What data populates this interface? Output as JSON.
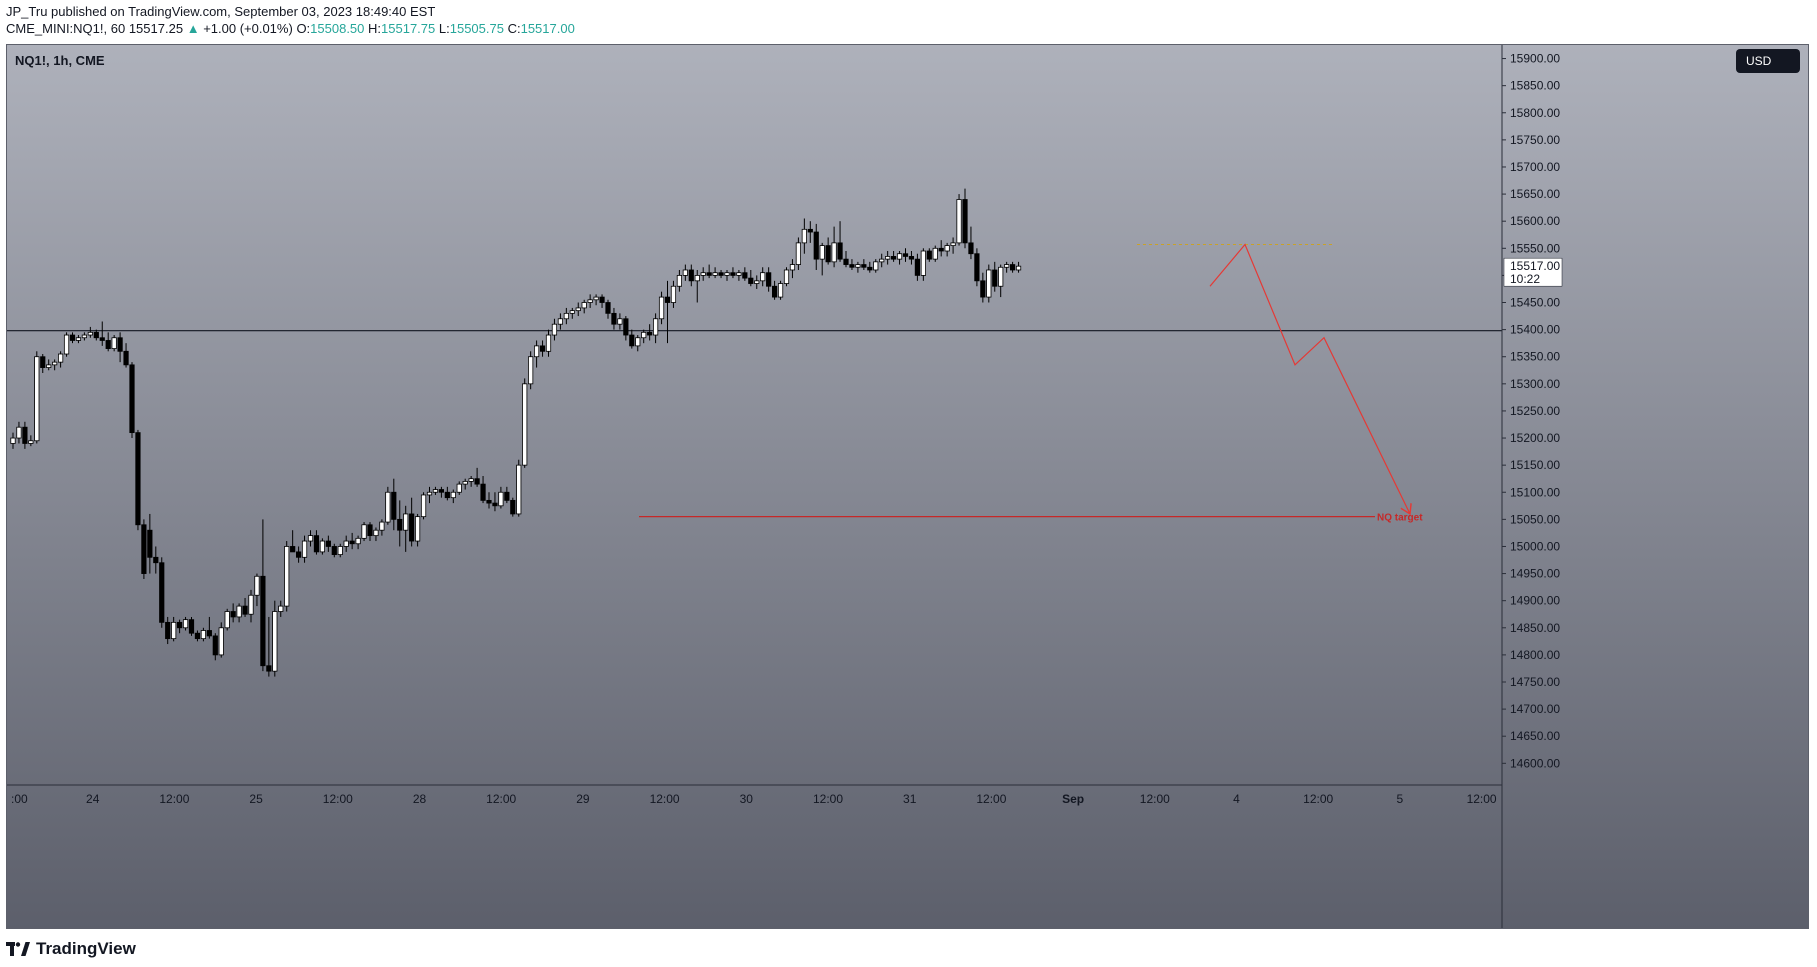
{
  "header": {
    "publisher_line": "JP_Tru published on TradingView.com, September 03, 2023 18:49:40 EST",
    "symbol": "CME_MINI:NQ1!, 60",
    "last": "15517.25",
    "change": "+1.00 (+0.01%)",
    "o_label": "O:",
    "o": "15508.50",
    "h_label": "H:",
    "h": "15517.75",
    "l_label": "L:",
    "l": "15505.75",
    "c_label": "C:",
    "c": "15517.00"
  },
  "chart_label": "NQ1!, 1h, CME",
  "currency_button": "USD",
  "price_tag": {
    "price": "15517.00",
    "countdown": "10:22"
  },
  "footer": {
    "brand": "TradingView"
  },
  "colors": {
    "bg_top": "#aeb1bb",
    "bg_bottom": "#5c5f6b",
    "candle_up": "#ffffff",
    "candle_down": "#000000",
    "projection": "#e53935",
    "target_line": "#c62828",
    "dotted_level": "#c9a227"
  },
  "chart_data": {
    "type": "candlestick",
    "title": "NQ1!, 1h, CME",
    "ylim": [
      14560,
      15925
    ],
    "y_ticks": [
      "15900.00",
      "15850.00",
      "15800.00",
      "15750.00",
      "15700.00",
      "15650.00",
      "15600.00",
      "15550.00",
      "15500.00",
      "15450.00",
      "15400.00",
      "15350.00",
      "15300.00",
      "15250.00",
      "15200.00",
      "15150.00",
      "15100.00",
      "15050.00",
      "15000.00",
      "14950.00",
      "14900.00",
      "14850.00",
      "14800.00",
      "14750.00",
      "14700.00",
      "14650.00",
      "14600.00"
    ],
    "x_ticks": [
      ":00",
      "24",
      "12:00",
      "25",
      "12:00",
      "28",
      "12:00",
      "29",
      "12:00",
      "30",
      "12:00",
      "31",
      "12:00",
      "Sep",
      "12:00",
      "4",
      "12:00",
      "5",
      "12:00"
    ],
    "candles": [
      [
        15190,
        15210,
        15180,
        15200
      ],
      [
        15200,
        15230,
        15190,
        15220
      ],
      [
        15220,
        15230,
        15180,
        15190
      ],
      [
        15190,
        15205,
        15185,
        15195
      ],
      [
        15195,
        15360,
        15190,
        15350
      ],
      [
        15350,
        15355,
        15320,
        15330
      ],
      [
        15330,
        15345,
        15325,
        15335
      ],
      [
        15335,
        15345,
        15325,
        15340
      ],
      [
        15340,
        15360,
        15330,
        15355
      ],
      [
        15355,
        15395,
        15350,
        15390
      ],
      [
        15390,
        15395,
        15375,
        15380
      ],
      [
        15380,
        15390,
        15375,
        15385
      ],
      [
        15385,
        15395,
        15380,
        15390
      ],
      [
        15390,
        15405,
        15385,
        15395
      ],
      [
        15395,
        15400,
        15380,
        15385
      ],
      [
        15385,
        15415,
        15370,
        15380
      ],
      [
        15380,
        15395,
        15360,
        15365
      ],
      [
        15365,
        15390,
        15360,
        15385
      ],
      [
        15385,
        15395,
        15340,
        15360
      ],
      [
        15360,
        15375,
        15330,
        15335
      ],
      [
        15335,
        15340,
        15200,
        15210
      ],
      [
        15210,
        15215,
        15030,
        15040
      ],
      [
        15040,
        15050,
        14940,
        14950
      ],
      [
        15030,
        15060,
        14950,
        14980
      ],
      [
        14980,
        15000,
        14950,
        14970
      ],
      [
        14970,
        14980,
        14850,
        14860
      ],
      [
        14860,
        14870,
        14820,
        14830
      ],
      [
        14830,
        14870,
        14825,
        14860
      ],
      [
        14860,
        14865,
        14840,
        14850
      ],
      [
        14850,
        14870,
        14845,
        14865
      ],
      [
        14865,
        14870,
        14835,
        14840
      ],
      [
        14840,
        14845,
        14825,
        14830
      ],
      [
        14830,
        14850,
        14825,
        14845
      ],
      [
        14845,
        14870,
        14830,
        14835
      ],
      [
        14835,
        14840,
        14790,
        14800
      ],
      [
        14800,
        14860,
        14795,
        14850
      ],
      [
        14850,
        14885,
        14845,
        14880
      ],
      [
        14880,
        14895,
        14860,
        14870
      ],
      [
        14870,
        14895,
        14860,
        14890
      ],
      [
        14890,
        14905,
        14870,
        14875
      ],
      [
        14875,
        14920,
        14860,
        14910
      ],
      [
        14910,
        14950,
        14890,
        14945
      ],
      [
        14945,
        15050,
        14770,
        14780
      ],
      [
        14780,
        14870,
        14760,
        14770
      ],
      [
        14770,
        14900,
        14760,
        14880
      ],
      [
        14880,
        14900,
        14870,
        14890
      ],
      [
        14890,
        15010,
        14880,
        15000
      ],
      [
        15000,
        15030,
        14990,
        14990
      ],
      [
        14990,
        15000,
        14970,
        14980
      ],
      [
        14980,
        15020,
        14970,
        15010
      ],
      [
        15010,
        15030,
        15000,
        15020
      ],
      [
        15020,
        15030,
        14985,
        14990
      ],
      [
        14990,
        15015,
        14985,
        15010
      ],
      [
        15010,
        15020,
        14990,
        15000
      ],
      [
        15000,
        15005,
        14980,
        14985
      ],
      [
        14985,
        15005,
        14980,
        15000
      ],
      [
        15000,
        15020,
        14990,
        15010
      ],
      [
        15010,
        15025,
        14995,
        15005
      ],
      [
        15005,
        15020,
        14995,
        15015
      ],
      [
        15015,
        15045,
        15010,
        15040
      ],
      [
        15040,
        15045,
        15010,
        15020
      ],
      [
        15020,
        15035,
        15010,
        15030
      ],
      [
        15030,
        15050,
        15020,
        15045
      ],
      [
        15045,
        15110,
        15040,
        15100
      ],
      [
        15100,
        15125,
        15030,
        15050
      ],
      [
        15050,
        15085,
        15000,
        15030
      ],
      [
        15030,
        15075,
        14990,
        15060
      ],
      [
        15060,
        15090,
        15000,
        15010
      ],
      [
        15010,
        15060,
        15000,
        15055
      ],
      [
        15055,
        15100,
        15050,
        15095
      ],
      [
        15095,
        15110,
        15080,
        15100
      ],
      [
        15100,
        15110,
        15095,
        15105
      ],
      [
        15105,
        15110,
        15090,
        15100
      ],
      [
        15100,
        15110,
        15085,
        15090
      ],
      [
        15090,
        15105,
        15080,
        15100
      ],
      [
        15100,
        15120,
        15095,
        15115
      ],
      [
        15115,
        15125,
        15105,
        15120
      ],
      [
        15120,
        15130,
        15110,
        15125
      ],
      [
        15125,
        15145,
        15110,
        15115
      ],
      [
        15115,
        15130,
        15080,
        15085
      ],
      [
        15085,
        15100,
        15070,
        15080
      ],
      [
        15080,
        15100,
        15065,
        15075
      ],
      [
        15075,
        15110,
        15070,
        15100
      ],
      [
        15100,
        15110,
        15080,
        15085
      ],
      [
        15085,
        15090,
        15055,
        15060
      ],
      [
        15060,
        15160,
        15055,
        15150
      ],
      [
        15150,
        15310,
        15145,
        15300
      ],
      [
        15300,
        15360,
        15290,
        15350
      ],
      [
        15350,
        15380,
        15330,
        15370
      ],
      [
        15370,
        15380,
        15350,
        15360
      ],
      [
        15360,
        15400,
        15350,
        15390
      ],
      [
        15390,
        15420,
        15380,
        15410
      ],
      [
        15410,
        15430,
        15400,
        15420
      ],
      [
        15420,
        15440,
        15410,
        15430
      ],
      [
        15430,
        15440,
        15420,
        15435
      ],
      [
        15435,
        15450,
        15425,
        15440
      ],
      [
        15440,
        15455,
        15430,
        15450
      ],
      [
        15450,
        15465,
        15440,
        15455
      ],
      [
        15455,
        15465,
        15445,
        15460
      ],
      [
        15460,
        15465,
        15440,
        15450
      ],
      [
        15450,
        15455,
        15420,
        15430
      ],
      [
        15430,
        15440,
        15400,
        15410
      ],
      [
        15410,
        15430,
        15400,
        15420
      ],
      [
        15420,
        15425,
        15380,
        15390
      ],
      [
        15390,
        15400,
        15365,
        15370
      ],
      [
        15370,
        15390,
        15360,
        15385
      ],
      [
        15385,
        15400,
        15375,
        15395
      ],
      [
        15395,
        15410,
        15380,
        15390
      ],
      [
        15390,
        15430,
        15375,
        15420
      ],
      [
        15420,
        15470,
        15410,
        15460
      ],
      [
        15460,
        15490,
        15375,
        15450
      ],
      [
        15450,
        15490,
        15440,
        15480
      ],
      [
        15480,
        15510,
        15470,
        15500
      ],
      [
        15500,
        15520,
        15490,
        15510
      ],
      [
        15510,
        15520,
        15480,
        15490
      ],
      [
        15490,
        15510,
        15450,
        15500
      ],
      [
        15500,
        15515,
        15490,
        15505
      ],
      [
        15505,
        15520,
        15495,
        15500
      ],
      [
        15500,
        15515,
        15495,
        15505
      ],
      [
        15505,
        15510,
        15495,
        15500
      ],
      [
        15500,
        15510,
        15490,
        15505
      ],
      [
        15505,
        15515,
        15495,
        15500
      ],
      [
        15500,
        15510,
        15490,
        15505
      ],
      [
        15505,
        15515,
        15490,
        15495
      ],
      [
        15495,
        15510,
        15480,
        15485
      ],
      [
        15485,
        15500,
        15475,
        15490
      ],
      [
        15490,
        15515,
        15480,
        15505
      ],
      [
        15505,
        15515,
        15470,
        15480
      ],
      [
        15480,
        15490,
        15455,
        15460
      ],
      [
        15460,
        15490,
        15455,
        15485
      ],
      [
        15485,
        15515,
        15480,
        15510
      ],
      [
        15510,
        15530,
        15495,
        15520
      ],
      [
        15520,
        15570,
        15510,
        15560
      ],
      [
        15560,
        15605,
        15540,
        15585
      ],
      [
        15585,
        15600,
        15560,
        15580
      ],
      [
        15580,
        15595,
        15510,
        15530
      ],
      [
        15530,
        15560,
        15500,
        15555
      ],
      [
        15555,
        15570,
        15520,
        15525
      ],
      [
        15525,
        15590,
        15515,
        15560
      ],
      [
        15560,
        15600,
        15525,
        15530
      ],
      [
        15530,
        15545,
        15515,
        15520
      ],
      [
        15520,
        15530,
        15510,
        15515
      ],
      [
        15515,
        15525,
        15505,
        15520
      ],
      [
        15520,
        15530,
        15510,
        15515
      ],
      [
        15515,
        15525,
        15505,
        15510
      ],
      [
        15510,
        15530,
        15505,
        15525
      ],
      [
        15525,
        15540,
        15515,
        15530
      ],
      [
        15530,
        15545,
        15520,
        15535
      ],
      [
        15535,
        15545,
        15525,
        15530
      ],
      [
        15530,
        15545,
        15520,
        15540
      ],
      [
        15540,
        15550,
        15525,
        15535
      ],
      [
        15535,
        15545,
        15520,
        15530
      ],
      [
        15530,
        15540,
        15490,
        15500
      ],
      [
        15500,
        15550,
        15490,
        15545
      ],
      [
        15545,
        15550,
        15525,
        15530
      ],
      [
        15530,
        15555,
        15525,
        15550
      ],
      [
        15550,
        15565,
        15535,
        15545
      ],
      [
        15545,
        15560,
        15535,
        15555
      ],
      [
        15555,
        15570,
        15540,
        15560
      ],
      [
        15560,
        15650,
        15555,
        15640
      ],
      [
        15640,
        15660,
        15550,
        15560
      ],
      [
        15560,
        15590,
        15530,
        15540
      ],
      [
        15540,
        15550,
        15480,
        15490
      ],
      [
        15490,
        15505,
        15450,
        15460
      ],
      [
        15460,
        15520,
        15450,
        15510
      ],
      [
        15510,
        15525,
        15470,
        15480
      ],
      [
        15480,
        15520,
        15460,
        15515
      ],
      [
        15515,
        15525,
        15505,
        15520
      ],
      [
        15520,
        15525,
        15505,
        15510
      ],
      [
        15510,
        15525,
        15505,
        15517
      ]
    ],
    "horizontal_line": 15398,
    "dotted_level": 15557,
    "target": {
      "label": "NQ target",
      "price": 15055
    },
    "projection_path": [
      [
        15480
      ],
      [
        15557
      ],
      [
        15335
      ],
      [
        15385
      ],
      [
        15060
      ]
    ]
  }
}
